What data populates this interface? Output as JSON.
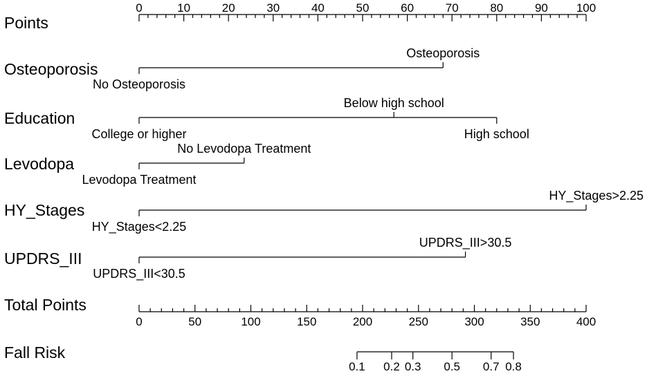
{
  "chart_data": {
    "type": "nomogram",
    "points_axis": {
      "label": "Points",
      "range": [
        0,
        100
      ],
      "ticks": [
        0,
        10,
        20,
        30,
        40,
        50,
        60,
        70,
        80,
        90,
        100
      ],
      "minor_step": 2
    },
    "predictors": [
      {
        "label": "Osteoporosis",
        "levels": [
          {
            "name": "No Osteoporosis",
            "points": 0
          },
          {
            "name": "Osteoporosis",
            "points": 68
          }
        ]
      },
      {
        "label": "Education",
        "levels": [
          {
            "name": "College or higher",
            "points": 0
          },
          {
            "name": "Below high school",
            "points": 57
          },
          {
            "name": "High school",
            "points": 80
          }
        ]
      },
      {
        "label": "Levodopa",
        "levels": [
          {
            "name": "Levodopa Treatment",
            "points": 0
          },
          {
            "name": "No Levodopa Treatment",
            "points": 23.5
          }
        ]
      },
      {
        "label": "HY_Stages",
        "levels": [
          {
            "name": "HY_Stages<2.25",
            "points": 0
          },
          {
            "name": "HY_Stages>2.25",
            "points": 100
          }
        ]
      },
      {
        "label": "UPDRS_III",
        "levels": [
          {
            "name": "UPDRS_III<30.5",
            "points": 0
          },
          {
            "name": "UPDRS_III>30.5",
            "points": 73
          }
        ]
      }
    ],
    "total_points_axis": {
      "label": "Total Points",
      "range": [
        0,
        400
      ],
      "ticks": [
        0,
        50,
        100,
        150,
        200,
        250,
        300,
        350,
        400
      ],
      "minor_step": 10
    },
    "risk_axis": {
      "label": "Fall Risk",
      "ticks": [
        {
          "label": "0.1",
          "total_points": 195
        },
        {
          "label": "0.2",
          "total_points": 226
        },
        {
          "label": "0.3",
          "total_points": 245
        },
        {
          "label": "0.5",
          "total_points": 280
        },
        {
          "label": "0.7",
          "total_points": 315
        },
        {
          "label": "0.8",
          "total_points": 335
        }
      ]
    }
  }
}
